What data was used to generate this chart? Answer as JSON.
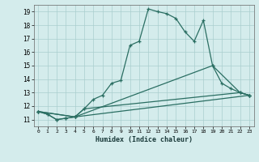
{
  "xlabel": "Humidex (Indice chaleur)",
  "bg_color": "#d4ecec",
  "grid_color": "#aacece",
  "line_color": "#2a6e62",
  "xlim": [
    -0.5,
    23.5
  ],
  "ylim": [
    10.5,
    19.5
  ],
  "xtick_labels": [
    "0",
    "1",
    "2",
    "3",
    "4",
    "5",
    "6",
    "7",
    "8",
    "9",
    "10",
    "11",
    "12",
    "13",
    "14",
    "15",
    "16",
    "17",
    "18",
    "19",
    "20",
    "21",
    "22",
    "23"
  ],
  "ytick_labels": [
    "11",
    "12",
    "13",
    "14",
    "15",
    "16",
    "17",
    "18",
    "19"
  ],
  "lines": [
    {
      "x": [
        0,
        1,
        2,
        3,
        4,
        5,
        6,
        7,
        8,
        9,
        10,
        11,
        12,
        13,
        14,
        15,
        16,
        17,
        18,
        19,
        20,
        21,
        22,
        23
      ],
      "y": [
        11.6,
        11.4,
        11.0,
        11.1,
        11.2,
        11.8,
        12.5,
        12.8,
        13.7,
        13.9,
        16.5,
        16.8,
        19.2,
        19.0,
        18.85,
        18.5,
        17.5,
        16.8,
        18.35,
        15.0,
        13.7,
        13.3,
        13.0,
        12.8
      ]
    },
    {
      "x": [
        0,
        1,
        2,
        3,
        4,
        5,
        22,
        23
      ],
      "y": [
        11.6,
        11.4,
        11.0,
        11.1,
        11.2,
        11.8,
        13.0,
        12.8
      ]
    },
    {
      "x": [
        0,
        4,
        19,
        22,
        23
      ],
      "y": [
        11.6,
        11.2,
        15.0,
        13.0,
        12.8
      ]
    },
    {
      "x": [
        0,
        4,
        23
      ],
      "y": [
        11.6,
        11.2,
        12.8
      ]
    }
  ]
}
